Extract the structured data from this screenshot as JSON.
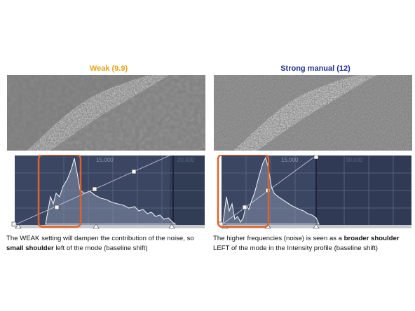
{
  "panels": [
    {
      "title": "Weak (9.9)",
      "title_color": "#e8a317",
      "tick1": "15,000",
      "tick2": "30,000",
      "caption": {
        "part1": "The WEAK setting will dampen the contribution of the noise, so ",
        "bold": "small shoulder",
        "part2": " left of the mode (baseline shift)"
      }
    },
    {
      "title": "Strong manual (12)",
      "title_color": "#1f2f8c",
      "tick1": "15,000",
      "tick2": "30,000",
      "caption": {
        "part1": "The higher frequencies (noise) is seen as a ",
        "bold": "broader shoulder",
        "part2": " LEFT of the mode in the Intensity profile (baseline shift)"
      }
    }
  ],
  "colors": {
    "hist_bg": "#3b4663",
    "hist_bg_dark": "#2e3750",
    "highlight_box": "#e0622a",
    "curve": "#e8ecf4"
  }
}
